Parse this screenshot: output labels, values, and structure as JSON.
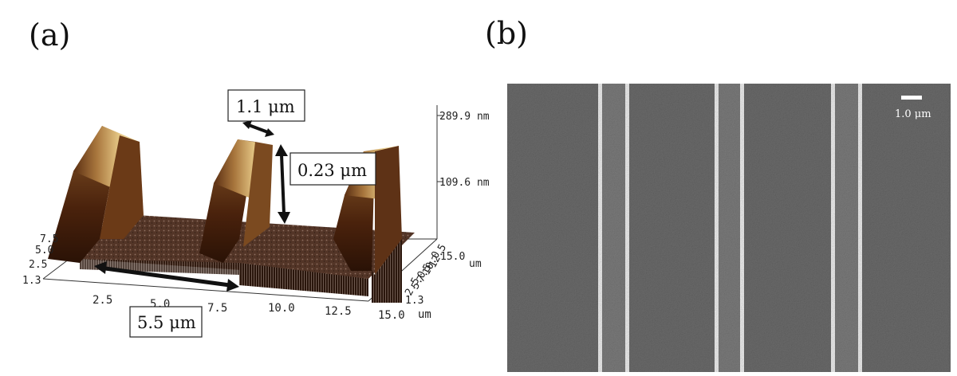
{
  "panels": {
    "a": {
      "label": "(a)",
      "z_ticks": [
        "289.9 nm",
        "109.6 nm"
      ],
      "x_ticks": [
        "2.5",
        "5.0",
        "7.5",
        "10.0",
        "12.5",
        "15.0"
      ],
      "x_unit": "um",
      "y_ticks_left": [
        "7.5",
        "5.0",
        "2.5",
        "1.3"
      ],
      "y_ticks_right": [
        "15.0",
        "12.5",
        "10.0",
        "7.5",
        "5.0",
        "2.5",
        "1.3"
      ],
      "y_unit": "um",
      "annotations": {
        "width": "1.1 μm",
        "height": "0.23 μm",
        "period": "5.5 μm"
      }
    },
    "b": {
      "label": "(b)",
      "scale_bar_label": "1.0 μm"
    }
  },
  "colors": {
    "ridge_top": "#e9cd8a",
    "ridge_shadow": "#3b1d0c",
    "floor": "#4a2a1c",
    "sem_background": "#5b5b5b",
    "sem_line": "#f2f2f2"
  }
}
